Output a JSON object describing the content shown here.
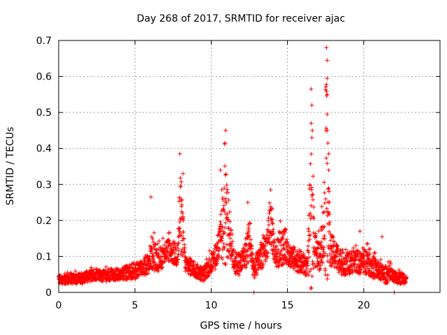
{
  "chart_data": {
    "type": "scatter",
    "title": "Day 268 of 2017, SRMTID for receiver ajac",
    "xlabel": "GPS time / hours",
    "ylabel": "SRMTID / TECUs",
    "xlim": [
      0,
      25
    ],
    "ylim": [
      0,
      0.7
    ],
    "grid": true,
    "marker": "+",
    "color": "#ff0000",
    "xticks": [
      0,
      5,
      10,
      15,
      20
    ],
    "xtick_labels": [
      "0",
      "5",
      "10",
      "15",
      "20"
    ],
    "yticks": [
      0,
      0.1,
      0.2,
      0.3,
      0.4,
      0.5,
      0.6,
      0.7
    ],
    "ytick_labels": [
      "0",
      "0.1",
      "0.2",
      "0.3",
      "0.4",
      "0.5",
      "0.6",
      "0.7"
    ],
    "series": [
      {
        "name": "SRMTID",
        "profile_hours": [
          0,
          0.5,
          1,
          1.5,
          2,
          2.5,
          3,
          3.5,
          4,
          4.5,
          5,
          5.5,
          5.9,
          6.1,
          6.5,
          6.8,
          7.1,
          7.5,
          7.8,
          7.95,
          8.1,
          8.3,
          8.7,
          9.0,
          9.5,
          10.0,
          10.4,
          10.7,
          10.9,
          11.2,
          11.5,
          11.9,
          12.2,
          12.5,
          12.8,
          13.2,
          13.6,
          13.9,
          14.2,
          14.5,
          14.9,
          15.2,
          15.6,
          16.0,
          16.3,
          16.55,
          16.8,
          17.1,
          17.35,
          17.55,
          17.8,
          18.2,
          18.6,
          19.0,
          19.4,
          19.8,
          20.2,
          20.6,
          21.0,
          21.3,
          21.7,
          22.0,
          22.3,
          22.7
        ],
        "profile_center": [
          0.035,
          0.035,
          0.04,
          0.04,
          0.045,
          0.05,
          0.045,
          0.05,
          0.05,
          0.055,
          0.06,
          0.07,
          0.08,
          0.11,
          0.09,
          0.1,
          0.12,
          0.11,
          0.1,
          0.22,
          0.18,
          0.08,
          0.07,
          0.06,
          0.05,
          0.08,
          0.11,
          0.16,
          0.22,
          0.17,
          0.08,
          0.08,
          0.1,
          0.15,
          0.06,
          0.1,
          0.12,
          0.2,
          0.1,
          0.12,
          0.13,
          0.1,
          0.09,
          0.08,
          0.07,
          0.2,
          0.12,
          0.1,
          0.16,
          0.3,
          0.12,
          0.1,
          0.08,
          0.08,
          0.09,
          0.08,
          0.09,
          0.07,
          0.06,
          0.05,
          0.05,
          0.04,
          0.04,
          0.04
        ],
        "profile_spread": [
          0.015,
          0.015,
          0.02,
          0.02,
          0.02,
          0.02,
          0.02,
          0.02,
          0.02,
          0.025,
          0.03,
          0.03,
          0.035,
          0.06,
          0.04,
          0.04,
          0.04,
          0.04,
          0.04,
          0.15,
          0.1,
          0.03,
          0.03,
          0.025,
          0.025,
          0.035,
          0.05,
          0.1,
          0.2,
          0.08,
          0.04,
          0.04,
          0.05,
          0.08,
          0.03,
          0.05,
          0.05,
          0.09,
          0.04,
          0.06,
          0.06,
          0.04,
          0.04,
          0.04,
          0.03,
          0.3,
          0.06,
          0.05,
          0.1,
          0.35,
          0.06,
          0.05,
          0.04,
          0.04,
          0.04,
          0.04,
          0.05,
          0.04,
          0.03,
          0.03,
          0.03,
          0.02,
          0.02,
          0.02
        ],
        "peaks": [
          {
            "x": 6.05,
            "y": 0.265
          },
          {
            "x": 7.95,
            "y": 0.385
          },
          {
            "x": 8.15,
            "y": 0.33
          },
          {
            "x": 10.95,
            "y": 0.45
          },
          {
            "x": 10.9,
            "y": 0.415
          },
          {
            "x": 10.6,
            "y": 0.34
          },
          {
            "x": 12.4,
            "y": 0.25
          },
          {
            "x": 13.9,
            "y": 0.285
          },
          {
            "x": 16.55,
            "y": 0.565
          },
          {
            "x": 16.6,
            "y": 0.52
          },
          {
            "x": 16.55,
            "y": 0.47
          },
          {
            "x": 16.6,
            "y": 0.43
          },
          {
            "x": 17.55,
            "y": 0.68
          },
          {
            "x": 17.6,
            "y": 0.645
          },
          {
            "x": 17.6,
            "y": 0.595
          },
          {
            "x": 17.6,
            "y": 0.55
          },
          {
            "x": 17.6,
            "y": 0.495
          },
          {
            "x": 17.6,
            "y": 0.45
          },
          {
            "x": 17.65,
            "y": 0.415
          },
          {
            "x": 17.7,
            "y": 0.385
          },
          {
            "x": 17.7,
            "y": 0.34
          },
          {
            "x": 19.75,
            "y": 0.17
          },
          {
            "x": 21.2,
            "y": 0.155
          },
          {
            "x": 12.8,
            "y": 0.0
          },
          {
            "x": 22.0,
            "y": 0.0
          }
        ],
        "end_hour": 22.8
      }
    ]
  }
}
